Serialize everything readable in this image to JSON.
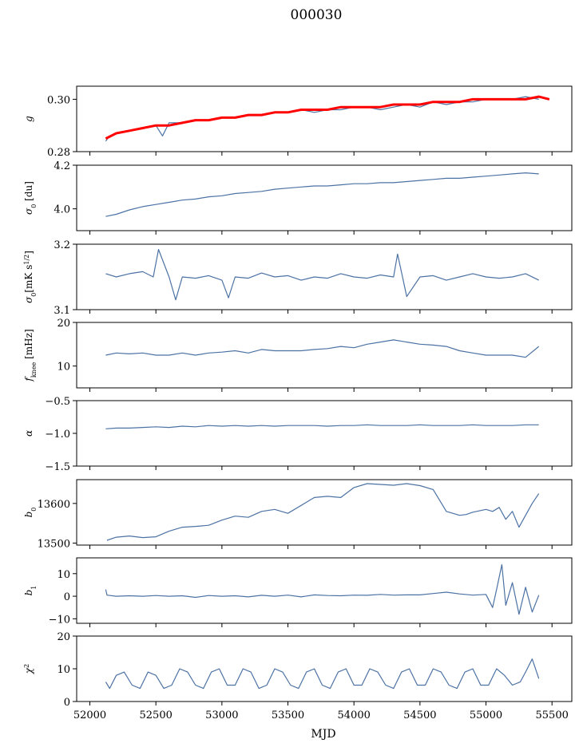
{
  "figure": {
    "title": "000030",
    "xlabel": "MJD"
  },
  "colors": {
    "series": "#4c72a4",
    "overlay": "#ff0000",
    "axis": "#000000"
  },
  "chart_data": [
    {
      "type": "line",
      "ylabel_main": "g",
      "ylabel_sub": "",
      "ylabel_sup": "",
      "ylabel_tail": "",
      "ylim": [
        0.28,
        0.305
      ],
      "yticks": [
        0.28,
        0.3
      ],
      "ytick_labels": [
        "0.28",
        "0.30"
      ],
      "xlim": [
        51900,
        55650
      ],
      "grid": false,
      "series": [
        {
          "color": "#4c72a4",
          "x": [
            52120,
            52150,
            52200,
            52300,
            52400,
            52500,
            52550,
            52600,
            52700,
            52800,
            52900,
            53000,
            53100,
            53200,
            53300,
            53400,
            53500,
            53600,
            53700,
            53800,
            53900,
            54000,
            54100,
            54200,
            54300,
            54400,
            54500,
            54600,
            54700,
            54800,
            54900,
            55000,
            55100,
            55200,
            55300,
            55400
          ],
          "y": [
            0.284,
            0.286,
            0.287,
            0.288,
            0.289,
            0.29,
            0.286,
            0.291,
            0.291,
            0.292,
            0.292,
            0.293,
            0.293,
            0.294,
            0.294,
            0.295,
            0.295,
            0.296,
            0.295,
            0.296,
            0.296,
            0.297,
            0.297,
            0.296,
            0.297,
            0.298,
            0.297,
            0.299,
            0.298,
            0.299,
            0.299,
            0.3,
            0.3,
            0.3,
            0.301,
            0.3
          ]
        },
        {
          "color": "#ff0000",
          "x": [
            52120,
            52200,
            52300,
            52400,
            52500,
            52600,
            52700,
            52800,
            52900,
            53000,
            53100,
            53200,
            53300,
            53400,
            53500,
            53600,
            53700,
            53800,
            53900,
            54000,
            54100,
            54200,
            54300,
            54400,
            54500,
            54600,
            54700,
            54800,
            54900,
            55000,
            55100,
            55200,
            55300,
            55400,
            55480
          ],
          "y": [
            0.285,
            0.287,
            0.288,
            0.289,
            0.29,
            0.29,
            0.291,
            0.292,
            0.292,
            0.293,
            0.293,
            0.294,
            0.294,
            0.295,
            0.295,
            0.296,
            0.296,
            0.296,
            0.297,
            0.297,
            0.297,
            0.297,
            0.298,
            0.298,
            0.298,
            0.299,
            0.299,
            0.299,
            0.3,
            0.3,
            0.3,
            0.3,
            0.3,
            0.301,
            0.3
          ]
        }
      ]
    },
    {
      "type": "line",
      "ylabel_main": "σ",
      "ylabel_sub": "0",
      "ylabel_sup": "",
      "ylabel_tail": " [du]",
      "ylim": [
        3.9,
        4.2
      ],
      "yticks": [
        4.0,
        4.2
      ],
      "ytick_labels": [
        "4.0",
        "4.2"
      ],
      "xlim": [
        51900,
        55650
      ],
      "grid": false,
      "series": [
        {
          "color": "#4c72a4",
          "x": [
            52120,
            52200,
            52300,
            52400,
            52500,
            52600,
            52700,
            52800,
            52900,
            53000,
            53100,
            53200,
            53300,
            53400,
            53500,
            53600,
            53700,
            53800,
            53900,
            54000,
            54100,
            54200,
            54300,
            54400,
            54500,
            54600,
            54700,
            54800,
            54900,
            55000,
            55100,
            55200,
            55300,
            55400
          ],
          "y": [
            3.965,
            3.975,
            3.995,
            4.01,
            4.02,
            4.03,
            4.04,
            4.045,
            4.055,
            4.06,
            4.07,
            4.075,
            4.08,
            4.09,
            4.095,
            4.1,
            4.105,
            4.105,
            4.11,
            4.115,
            4.115,
            4.12,
            4.12,
            4.125,
            4.13,
            4.135,
            4.14,
            4.14,
            4.145,
            4.15,
            4.155,
            4.16,
            4.165,
            4.16
          ]
        }
      ]
    },
    {
      "type": "line",
      "ylabel_main": "σ",
      "ylabel_sub": "0",
      "ylabel_sup": "1/2",
      "ylabel_tail": "[mK s",
      "ylim": [
        3.1,
        3.2
      ],
      "yticks": [
        3.1,
        3.2
      ],
      "ytick_labels": [
        "3.1",
        "3.2"
      ],
      "xlim": [
        51900,
        55650
      ],
      "grid": false,
      "series": [
        {
          "color": "#4c72a4",
          "x": [
            52120,
            52200,
            52300,
            52400,
            52480,
            52520,
            52600,
            52650,
            52700,
            52800,
            52900,
            53000,
            53050,
            53100,
            53200,
            53300,
            53400,
            53500,
            53600,
            53700,
            53800,
            53900,
            54000,
            54100,
            54200,
            54300,
            54330,
            54400,
            54500,
            54600,
            54700,
            54800,
            54900,
            55000,
            55100,
            55200,
            55300,
            55400
          ],
          "y": [
            3.155,
            3.15,
            3.155,
            3.158,
            3.15,
            3.192,
            3.15,
            3.115,
            3.15,
            3.148,
            3.152,
            3.145,
            3.118,
            3.15,
            3.148,
            3.156,
            3.15,
            3.152,
            3.145,
            3.15,
            3.148,
            3.155,
            3.15,
            3.148,
            3.153,
            3.15,
            3.185,
            3.12,
            3.15,
            3.152,
            3.145,
            3.15,
            3.155,
            3.15,
            3.148,
            3.15,
            3.155,
            3.145
          ]
        }
      ]
    },
    {
      "type": "line",
      "ylabel_main": "f",
      "ylabel_sub": "knee",
      "ylabel_sup": "",
      "ylabel_tail": " [mHz]",
      "ylim": [
        5,
        20
      ],
      "yticks": [
        10,
        20
      ],
      "ytick_labels": [
        "10",
        "20"
      ],
      "xlim": [
        51900,
        55650
      ],
      "grid": false,
      "series": [
        {
          "color": "#4c72a4",
          "x": [
            52120,
            52200,
            52300,
            52400,
            52500,
            52600,
            52700,
            52800,
            52900,
            53000,
            53100,
            53200,
            53300,
            53400,
            53500,
            53600,
            53700,
            53800,
            53900,
            54000,
            54100,
            54200,
            54300,
            54400,
            54500,
            54600,
            54700,
            54800,
            54900,
            55000,
            55100,
            55200,
            55300,
            55400
          ],
          "y": [
            12.5,
            13,
            12.8,
            13,
            12.5,
            12.5,
            13,
            12.5,
            13,
            13.2,
            13.5,
            13,
            13.8,
            13.5,
            13.5,
            13.5,
            13.8,
            14,
            14.5,
            14.2,
            15,
            15.5,
            16,
            15.5,
            15,
            14.8,
            14.5,
            13.5,
            13,
            12.5,
            12.5,
            12.5,
            12,
            14.5
          ]
        }
      ]
    },
    {
      "type": "line",
      "ylabel_main": "α",
      "ylabel_sub": "",
      "ylabel_sup": "",
      "ylabel_tail": "",
      "ylim": [
        -1.5,
        -0.5
      ],
      "yticks": [
        -1.5,
        -1.0,
        -0.5
      ],
      "ytick_labels": [
        "−1.5",
        "−1.0",
        "−0.5"
      ],
      "xlim": [
        51900,
        55650
      ],
      "grid": false,
      "series": [
        {
          "color": "#4c72a4",
          "x": [
            52120,
            52200,
            52300,
            52400,
            52500,
            52600,
            52700,
            52800,
            52900,
            53000,
            53100,
            53200,
            53300,
            53400,
            53500,
            53600,
            53700,
            53800,
            53900,
            54000,
            54100,
            54200,
            54300,
            54400,
            54500,
            54600,
            54700,
            54800,
            54900,
            55000,
            55100,
            55200,
            55300,
            55400
          ],
          "y": [
            -0.93,
            -0.92,
            -0.92,
            -0.91,
            -0.9,
            -0.91,
            -0.89,
            -0.9,
            -0.88,
            -0.89,
            -0.88,
            -0.89,
            -0.88,
            -0.89,
            -0.88,
            -0.88,
            -0.88,
            -0.89,
            -0.88,
            -0.88,
            -0.87,
            -0.88,
            -0.88,
            -0.88,
            -0.87,
            -0.88,
            -0.88,
            -0.88,
            -0.87,
            -0.88,
            -0.88,
            -0.88,
            -0.87,
            -0.87
          ]
        }
      ]
    },
    {
      "type": "line",
      "ylabel_main": "b",
      "ylabel_sub": "0",
      "ylabel_sup": "",
      "ylabel_tail": "",
      "ylim": [
        13495,
        13660
      ],
      "yticks": [
        13500,
        13600
      ],
      "ytick_labels": [
        "13500",
        "13600"
      ],
      "xlim": [
        51900,
        55650
      ],
      "grid": false,
      "series": [
        {
          "color": "#4c72a4",
          "x": [
            52130,
            52200,
            52300,
            52400,
            52500,
            52600,
            52700,
            52800,
            52900,
            53000,
            53100,
            53200,
            53300,
            53400,
            53500,
            53600,
            53700,
            53800,
            53900,
            54000,
            54100,
            54200,
            54300,
            54400,
            54500,
            54600,
            54700,
            54800,
            54850,
            54900,
            55000,
            55050,
            55100,
            55150,
            55200,
            55250,
            55300,
            55350,
            55400
          ],
          "y": [
            13507,
            13515,
            13518,
            13514,
            13516,
            13530,
            13540,
            13542,
            13545,
            13558,
            13568,
            13565,
            13580,
            13585,
            13575,
            13595,
            13615,
            13618,
            13615,
            13640,
            13650,
            13648,
            13646,
            13650,
            13645,
            13635,
            13580,
            13570,
            13572,
            13578,
            13585,
            13580,
            13590,
            13560,
            13580,
            13540,
            13570,
            13600,
            13625
          ]
        }
      ]
    },
    {
      "type": "line",
      "ylabel_main": "b",
      "ylabel_sub": "1",
      "ylabel_sup": "",
      "ylabel_tail": "",
      "ylim": [
        -12,
        17
      ],
      "yticks": [
        -10,
        0,
        10
      ],
      "ytick_labels": [
        "−10",
        "0",
        "10"
      ],
      "xlim": [
        51900,
        55650
      ],
      "grid": false,
      "series": [
        {
          "color": "#4c72a4",
          "x": [
            52120,
            52130,
            52200,
            52300,
            52400,
            52500,
            52600,
            52700,
            52800,
            52900,
            53000,
            53100,
            53200,
            53300,
            53400,
            53500,
            53600,
            53700,
            53800,
            53900,
            54000,
            54100,
            54200,
            54300,
            54400,
            54500,
            54600,
            54700,
            54800,
            54900,
            55000,
            55050,
            55080,
            55120,
            55150,
            55200,
            55250,
            55300,
            55350,
            55400
          ],
          "y": [
            3,
            0.5,
            0,
            0.2,
            0,
            0.3,
            0,
            0.2,
            -0.5,
            0.3,
            0,
            0.2,
            -0.3,
            0.4,
            0,
            0.5,
            -0.3,
            0.6,
            0.3,
            0.2,
            0.5,
            0.4,
            0.8,
            0.5,
            0.6,
            0.6,
            1.2,
            1.8,
            1.0,
            0.5,
            0.8,
            -5,
            3,
            14,
            -4,
            6,
            -8,
            4,
            -7,
            0.5
          ]
        }
      ]
    },
    {
      "type": "line",
      "ylabel_main": "χ",
      "ylabel_sub": "",
      "ylabel_sup": "2",
      "ylabel_tail": "",
      "ylim": [
        0,
        20
      ],
      "yticks": [
        0,
        10,
        20
      ],
      "ytick_labels": [
        "0",
        "10",
        "20"
      ],
      "xlim": [
        51900,
        55650
      ],
      "grid": false,
      "series": [
        {
          "color": "#4c72a4",
          "x": [
            52120,
            52150,
            52200,
            52260,
            52320,
            52380,
            52440,
            52500,
            52560,
            52620,
            52680,
            52740,
            52800,
            52860,
            52920,
            52980,
            53040,
            53100,
            53160,
            53220,
            53280,
            53340,
            53400,
            53460,
            53520,
            53580,
            53640,
            53700,
            53760,
            53820,
            53880,
            53940,
            54000,
            54060,
            54120,
            54180,
            54240,
            54300,
            54360,
            54420,
            54480,
            54540,
            54600,
            54660,
            54720,
            54780,
            54840,
            54900,
            54960,
            55020,
            55080,
            55140,
            55200,
            55260,
            55300,
            55350,
            55400
          ],
          "y": [
            6,
            4,
            8,
            9,
            5,
            4,
            9,
            8,
            4,
            5,
            10,
            9,
            5,
            4,
            9,
            10,
            5,
            5,
            10,
            9,
            4,
            5,
            10,
            9,
            5,
            4,
            9,
            10,
            5,
            4,
            9,
            10,
            5,
            5,
            10,
            9,
            5,
            4,
            9,
            10,
            5,
            5,
            10,
            9,
            5,
            4,
            9,
            10,
            5,
            5,
            10,
            8,
            5,
            6,
            9,
            13,
            7
          ]
        }
      ]
    }
  ],
  "xaxis": {
    "ticks": [
      52000,
      52500,
      53000,
      53500,
      54000,
      54500,
      55000,
      55500
    ],
    "tick_labels": [
      "52000",
      "52500",
      "53000",
      "53500",
      "54000",
      "54500",
      "55000",
      "55500"
    ]
  }
}
